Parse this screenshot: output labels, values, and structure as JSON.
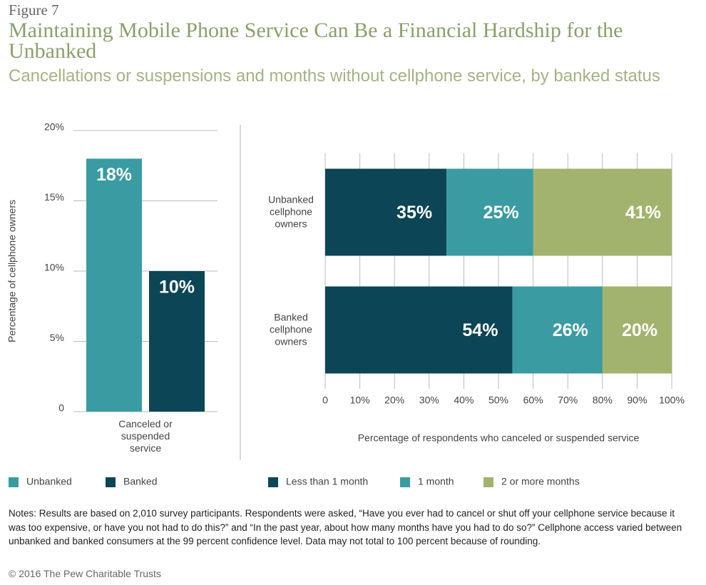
{
  "figure_label": "Figure 7",
  "title": "Maintaining Mobile Phone Service Can Be a Financial Hardship for the Unbanked",
  "subtitle": "Cancellations or suspensions and months without cellphone service, by banked status",
  "notes": "Notes: Results are based on 2,010 survey participants. Respondents were asked, “Have you ever had to cancel or shut off your cellphone service because it was too expensive, or have you not had to do this?” and “In the past year, about how many months have you had to do so?” Cellphone access varied between unbanked and banked consumers at the 99 percent confidence level. Data may not total to 100 percent because of rounding.",
  "source": "© 2016 The Pew Charitable Trusts",
  "chart_data": [
    {
      "type": "bar",
      "categories": [
        "Canceled or suspended service"
      ],
      "series": [
        {
          "name": "Unbanked",
          "color": "#3a9ba2",
          "values": [
            18
          ],
          "value_labels": [
            "18%"
          ]
        },
        {
          "name": "Banked",
          "color": "#0c4555",
          "values": [
            10
          ],
          "value_labels": [
            "10%"
          ]
        }
      ],
      "ylabel": "Percentage of cellphone owners",
      "ylim": [
        0,
        20
      ],
      "yticks": [
        0,
        {
          "value": 5,
          "label": "5%"
        },
        {
          "value": 10,
          "label": "10%"
        },
        {
          "value": 15,
          "label": "15%"
        },
        {
          "value": 20,
          "label": "20%"
        }
      ],
      "grid": true
    },
    {
      "type": "stacked_barh",
      "categories": [
        "Unbanked cellphone owners",
        "Banked cellphone owners"
      ],
      "series": [
        {
          "name": "Less than 1 month",
          "color": "#0c4555",
          "values": [
            35,
            54
          ],
          "value_labels": [
            "35%",
            "54%"
          ]
        },
        {
          "name": "1 month",
          "color": "#3a9ba2",
          "values": [
            25,
            26
          ],
          "value_labels": [
            "25%",
            "26%"
          ]
        },
        {
          "name": "2 or more months",
          "color": "#a1b36c",
          "values": [
            41,
            20
          ],
          "value_labels": [
            "41%",
            "20%"
          ]
        }
      ],
      "xlabel": "Percentage of respondents who canceled or suspended service",
      "xlim": [
        0,
        100
      ],
      "xticks": [
        0,
        {
          "value": 10,
          "label": "10%"
        },
        {
          "value": 20,
          "label": "20%"
        },
        {
          "value": 30,
          "label": "30%"
        },
        {
          "value": 40,
          "label": "40%"
        },
        {
          "value": 50,
          "label": "50%"
        },
        {
          "value": 60,
          "label": "60%"
        },
        {
          "value": 70,
          "label": "70%"
        },
        {
          "value": 80,
          "label": "80%"
        },
        {
          "value": 90,
          "label": "90%"
        },
        {
          "value": 100,
          "label": "100%"
        }
      ],
      "grid": true
    }
  ]
}
